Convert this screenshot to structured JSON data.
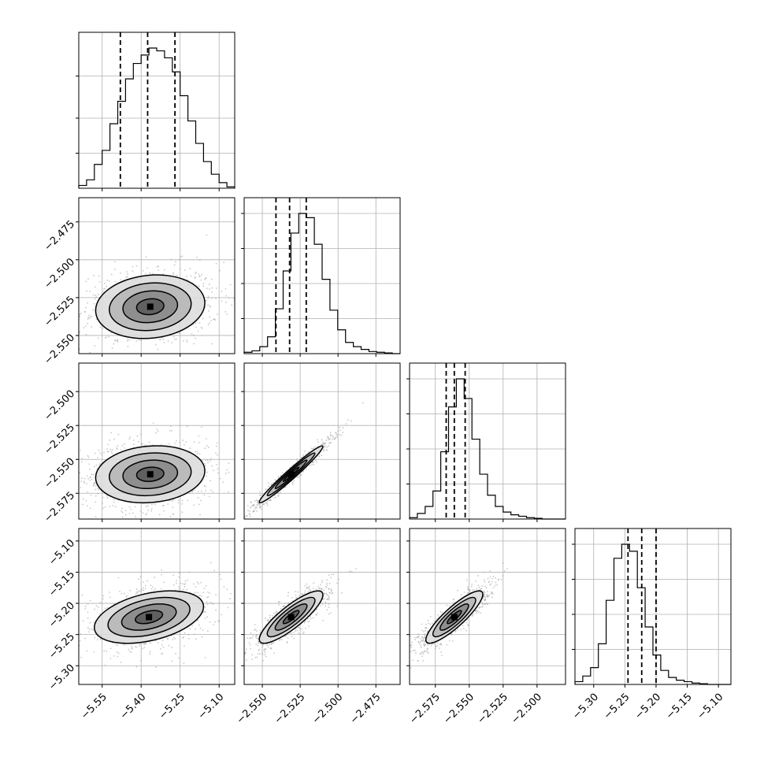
{
  "chart_data": {
    "type": "corner",
    "grid": true,
    "parameters": 4,
    "colors": {
      "line": "#000000",
      "grid": "#b0b0b0",
      "scatter": "#9a9a9a",
      "density": [
        "#dadada",
        "#b4b4b4",
        "#868686",
        "#585858",
        "#2a2a2a"
      ]
    },
    "axis_ticks": [
      {
        "ticks": [
          -5.55,
          -5.4,
          -5.25,
          -5.1
        ],
        "labels": [
          "−5.55",
          "−5.40",
          "−5.25",
          "−5.10"
        ],
        "range": [
          -5.64,
          -5.04
        ]
      },
      {
        "ticks": [
          -2.55,
          -2.525,
          -2.5,
          -2.475
        ],
        "labels": [
          "−2.550",
          "−2.525",
          "−2.500",
          "−2.475"
        ],
        "range": [
          -2.562,
          -2.459
        ]
      },
      {
        "ticks": [
          -2.575,
          -2.55,
          -2.525,
          -2.5
        ],
        "labels": [
          "−2.575",
          "−2.550",
          "−2.525",
          "−2.500"
        ],
        "range": [
          -2.594,
          -2.479
        ]
      },
      {
        "ticks": [
          -5.3,
          -5.25,
          -5.2,
          -5.15,
          -5.1
        ],
        "labels": [
          "−5.30",
          "−5.25",
          "−5.20",
          "−5.15",
          "−5.10"
        ],
        "range": [
          -5.33,
          -5.08
        ]
      }
    ],
    "histograms": [
      {
        "param": 0,
        "quantiles": [
          -5.48,
          -5.375,
          -5.27
        ],
        "counts": [
          0.02,
          0.06,
          0.17,
          0.27,
          0.46,
          0.62,
          0.78,
          0.89,
          0.95,
          1.0,
          0.98,
          0.93,
          0.83,
          0.66,
          0.48,
          0.32,
          0.19,
          0.1,
          0.04,
          0.01
        ],
        "y_ticks": [
          0.25,
          0.5,
          0.8
        ]
      },
      {
        "param": 1,
        "quantiles": [
          -2.541,
          -2.532,
          -2.521
        ],
        "counts": [
          0.01,
          0.02,
          0.05,
          0.12,
          0.32,
          0.59,
          0.86,
          1.0,
          0.97,
          0.78,
          0.53,
          0.31,
          0.17,
          0.08,
          0.05,
          0.03,
          0.015,
          0.01,
          0.005,
          0.0
        ],
        "y_ticks": [
          0.25,
          0.5,
          0.75,
          1.0
        ]
      },
      {
        "param": 2,
        "quantiles": [
          -2.567,
          -2.561,
          -2.553
        ],
        "counts": [
          0.01,
          0.04,
          0.09,
          0.2,
          0.48,
          0.8,
          1.0,
          0.86,
          0.57,
          0.32,
          0.17,
          0.09,
          0.05,
          0.03,
          0.02,
          0.01,
          0.005,
          0.0,
          0.0,
          0.0
        ],
        "y_ticks": [
          0.25,
          0.5,
          0.75,
          1.0
        ]
      },
      {
        "param": 3,
        "quantiles": [
          -5.245,
          -5.223,
          -5.2
        ],
        "counts": [
          0.02,
          0.06,
          0.12,
          0.29,
          0.6,
          0.9,
          1.0,
          0.95,
          0.69,
          0.41,
          0.21,
          0.1,
          0.05,
          0.03,
          0.02,
          0.01,
          0.005,
          0.0,
          0.0,
          0.0
        ],
        "y_ticks": [
          0.25,
          0.5,
          0.75,
          1.0
        ]
      }
    ],
    "pairs": [
      {
        "x": 0,
        "y": 1,
        "cx": -5.365,
        "cy": -2.531,
        "sx": 0.105,
        "sy": 0.0105,
        "rho": 0.12,
        "levels": [
          0.5,
          1.0,
          1.5,
          2.0
        ]
      },
      {
        "x": 0,
        "y": 2,
        "cx": -5.365,
        "cy": -2.561,
        "sx": 0.105,
        "sy": 0.0105,
        "rho": 0.12,
        "levels": [
          0.5,
          1.0,
          1.5,
          2.0
        ]
      },
      {
        "x": 1,
        "y": 2,
        "cx": -2.531,
        "cy": -2.561,
        "sx": 0.0105,
        "sy": 0.0105,
        "rho": 0.975,
        "levels": [
          0.5,
          1.0,
          1.5,
          2.0
        ]
      },
      {
        "x": 0,
        "y": 3,
        "cx": -5.37,
        "cy": -5.222,
        "sx": 0.105,
        "sy": 0.021,
        "rho": 0.4,
        "levels": [
          0.5,
          1.0,
          1.5,
          2.0
        ]
      },
      {
        "x": 1,
        "y": 3,
        "cx": -2.531,
        "cy": -5.222,
        "sx": 0.0105,
        "sy": 0.021,
        "rho": 0.85,
        "levels": [
          0.5,
          1.0,
          1.5,
          2.0
        ]
      },
      {
        "x": 2,
        "y": 3,
        "cx": -2.561,
        "cy": -5.222,
        "sx": 0.0105,
        "sy": 0.021,
        "rho": 0.87,
        "levels": [
          0.5,
          1.0,
          1.5,
          2.0
        ]
      }
    ]
  }
}
